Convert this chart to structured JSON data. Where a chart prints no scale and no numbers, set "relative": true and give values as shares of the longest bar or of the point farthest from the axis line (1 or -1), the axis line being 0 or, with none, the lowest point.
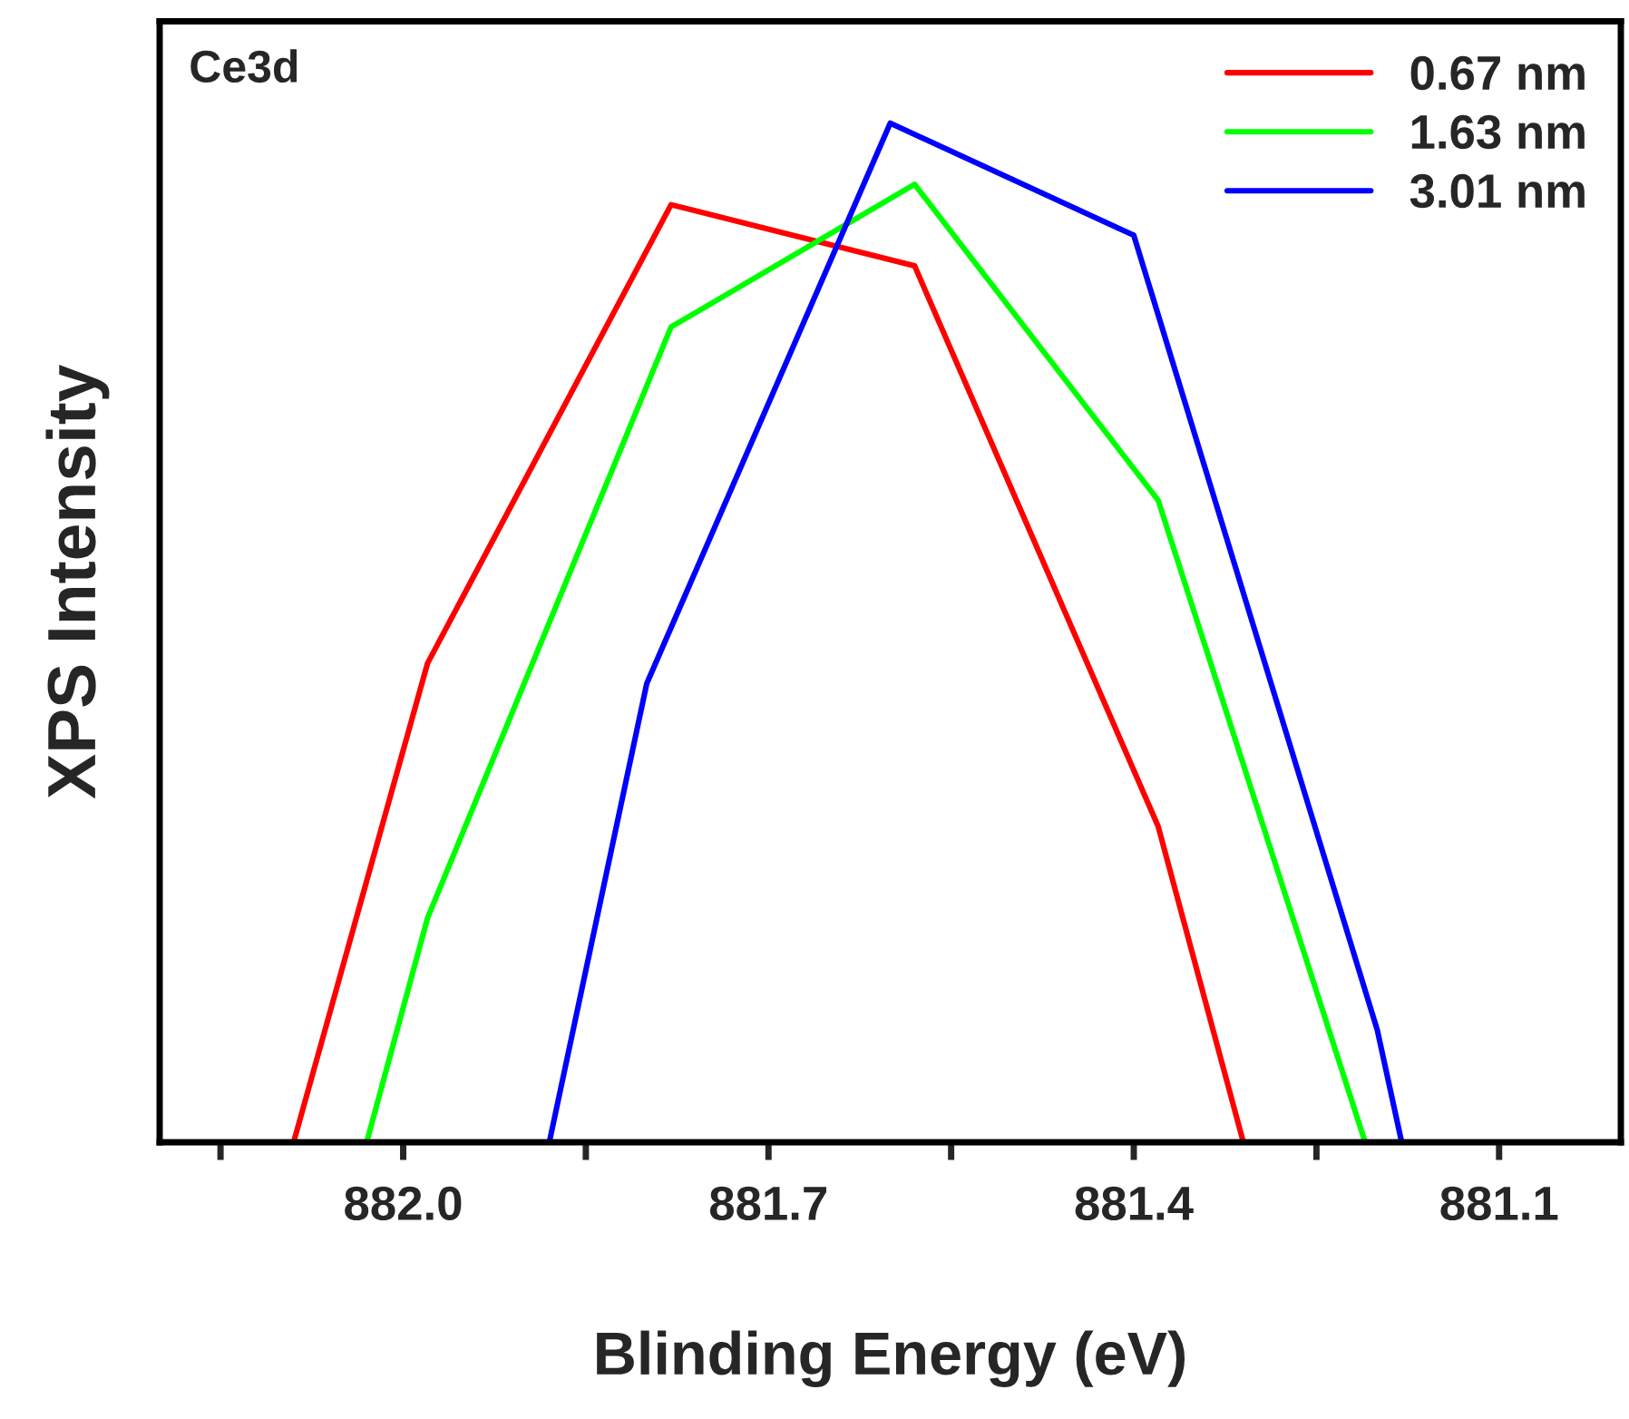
{
  "chart_data": {
    "type": "line",
    "relative": true,
    "xlabel": "Blinding Energy (eV)",
    "ylabel": "XPS Intensity",
    "annotations": [
      "Ce3d"
    ],
    "xlim": [
      882.2,
      881.0
    ],
    "xticks": [
      {
        "value": 882.15,
        "label": null
      },
      {
        "value": 882.0,
        "label": "882.0"
      },
      {
        "value": 881.85,
        "label": null
      },
      {
        "value": 881.7,
        "label": "881.7"
      },
      {
        "value": 881.55,
        "label": null
      },
      {
        "value": 881.4,
        "label": "881.4"
      },
      {
        "value": 881.25,
        "label": null
      },
      {
        "value": 881.1,
        "label": "881.1"
      }
    ],
    "tick_labels": "x",
    "legend": "top right",
    "grid": false,
    "series": [
      {
        "name": "0.67 nm",
        "color": "#ff0000",
        "x": [
          882.09,
          881.98,
          881.78,
          881.58,
          881.38,
          881.31
        ],
        "values": [
          0,
          0.47,
          0.92,
          0.86,
          0.31,
          0
        ]
      },
      {
        "name": "1.63 nm",
        "color": "#00ff00",
        "x": [
          882.03,
          881.98,
          881.78,
          881.58,
          881.38,
          881.21
        ],
        "values": [
          0,
          0.22,
          0.8,
          0.94,
          0.63,
          0
        ]
      },
      {
        "name": "3.01 nm",
        "color": "#0000ff",
        "x": [
          881.88,
          881.8,
          881.6,
          881.4,
          881.2,
          881.18
        ],
        "values": [
          0,
          0.45,
          1,
          0.89,
          0.11,
          0
        ]
      }
    ]
  }
}
